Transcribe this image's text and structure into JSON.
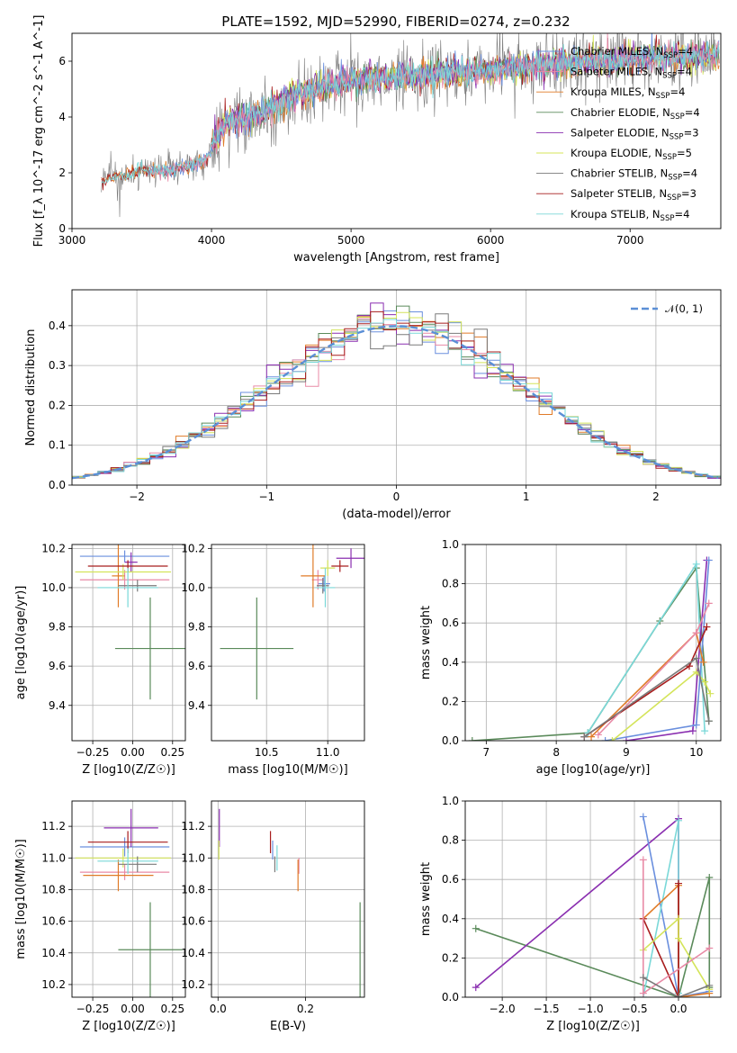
{
  "title": "PLATE=1592, MJD=52990, FIBERID=0274, z=0.232",
  "colors": {
    "Chabrier MILES": "#6a8fde",
    "Salpeter MILES": "#e88aa6",
    "Kroupa MILES": "#e07b28",
    "Chabrier ELODIE": "#5a8a5a",
    "Salpeter ELODIE": "#8a2fb0",
    "Kroupa ELODIE": "#d4e45a",
    "Chabrier STELIB": "#7a7a7a",
    "Salpeter STELIB": "#a81d1d",
    "Kroupa STELIB": "#7ad8d8",
    "normal": "#5b8fd6"
  },
  "chart_data": [
    {
      "type": "line",
      "xlabel": "wavelength [Angstrom, rest frame]",
      "ylabel": "Flux [f_λ 10^-17 erg cm^-2 s^-1 A^-1]",
      "xlim": [
        3000,
        7650
      ],
      "ylim": [
        0,
        7
      ],
      "xticks": [
        "3000",
        "4000",
        "5000",
        "6000",
        "7000"
      ],
      "yticks": [
        "0",
        "2",
        "4",
        "6"
      ],
      "legend_position": "top-right",
      "series": [
        {
          "name": "Chabrier MILES, N_SSP=4",
          "key": "Chabrier MILES"
        },
        {
          "name": "Salpeter MILES, N_SSP=4",
          "key": "Salpeter MILES"
        },
        {
          "name": "Kroupa MILES, N_SSP=4",
          "key": "Kroupa MILES"
        },
        {
          "name": "Chabrier ELODIE, N_SSP=4",
          "key": "Chabrier ELODIE"
        },
        {
          "name": "Salpeter ELODIE, N_SSP=3",
          "key": "Salpeter ELODIE"
        },
        {
          "name": "Kroupa ELODIE, N_SSP=5",
          "key": "Kroupa ELODIE"
        },
        {
          "name": "Chabrier STELIB, N_SSP=4",
          "key": "Chabrier STELIB"
        },
        {
          "name": "Salpeter STELIB, N_SSP=3",
          "key": "Salpeter STELIB"
        },
        {
          "name": "Kroupa STELIB, N_SSP=4",
          "key": "Kroupa STELIB"
        }
      ],
      "spectrum_profile": {
        "wavelength": [
          3200,
          3500,
          3700,
          3950,
          4100,
          4300,
          4600,
          5000,
          5500,
          6000,
          6500,
          7000,
          7400
        ],
        "flux": [
          1.7,
          2.1,
          2.05,
          2.4,
          3.8,
          4.0,
          4.8,
          5.3,
          5.5,
          5.7,
          5.9,
          6.1,
          6.2
        ]
      }
    },
    {
      "type": "step",
      "xlabel": "(data-model)/error",
      "ylabel": "Normed distribution",
      "xlim": [
        -2.5,
        2.5
      ],
      "ylim": [
        0,
        0.49
      ],
      "xticks": [
        "−2",
        "−1",
        "0",
        "1",
        "2"
      ],
      "yticks": [
        "0.0",
        "0.1",
        "0.2",
        "0.3",
        "0.4"
      ],
      "legend_position": "top-right",
      "legend": "𝒩(0, 1)",
      "normal": {
        "mean": 0,
        "sigma": 1
      }
    },
    {
      "type": "errorbar",
      "xlabel": "Z [log10(Z/Z☉)]",
      "ylabel": "age  [log10(age/yr)]",
      "xlim": [
        -0.38,
        0.33
      ],
      "ylim": [
        9.22,
        10.22
      ],
      "xticks": [
        "−0.25",
        "0.00",
        "0.25"
      ],
      "yticks": [
        "9.4",
        "9.6",
        "9.8",
        "10.0",
        "10.2"
      ],
      "points": [
        {
          "key": "Chabrier MILES",
          "x": -0.05,
          "y": 10.16,
          "xerr": 0.28,
          "yerr": 0.03
        },
        {
          "key": "Salpeter MILES",
          "x": -0.05,
          "y": 10.04,
          "xerr": 0.28,
          "yerr": 0.05
        },
        {
          "key": "Kroupa MILES",
          "x": -0.09,
          "y": 10.06,
          "xerr": 0.04,
          "yerr": 0.16
        },
        {
          "key": "Chabrier ELODIE",
          "x": 0.11,
          "y": 9.69,
          "xerr": 0.22,
          "yerr": 0.26
        },
        {
          "key": "Salpeter ELODIE",
          "x": -0.01,
          "y": 10.13,
          "xerr": 0.04,
          "yerr": 0.05
        },
        {
          "key": "Kroupa ELODIE",
          "x": -0.06,
          "y": 10.08,
          "xerr": 0.3,
          "yerr": 0.04
        },
        {
          "key": "Chabrier STELIB",
          "x": 0.03,
          "y": 10.01,
          "xerr": 0.12,
          "yerr": 0.03
        },
        {
          "key": "Salpeter STELIB",
          "x": -0.03,
          "y": 10.11,
          "xerr": 0.25,
          "yerr": 0.03
        },
        {
          "key": "Kroupa STELIB",
          "x": -0.03,
          "y": 10.0,
          "xerr": 0.19,
          "yerr": 0.1
        }
      ]
    },
    {
      "type": "errorbar",
      "xlabel": "mass [log10(M/M☉)]",
      "ylabel": "",
      "xlim": [
        10.05,
        11.3
      ],
      "ylim": [
        9.22,
        10.22
      ],
      "xticks": [
        "10.5",
        "11.0"
      ],
      "yticks": [
        "9.4",
        "9.6",
        "9.8",
        "10.0",
        "10.2"
      ],
      "points": [
        {
          "key": "Chabrier MILES",
          "x": 10.97,
          "y": 10.02,
          "xerr": 0.05,
          "yerr": 0.04
        },
        {
          "key": "Salpeter MILES",
          "x": 10.92,
          "y": 10.04,
          "xerr": 0.05,
          "yerr": 0.05
        },
        {
          "key": "Kroupa MILES",
          "x": 10.88,
          "y": 10.06,
          "xerr": 0.1,
          "yerr": 0.16
        },
        {
          "key": "Chabrier ELODIE",
          "x": 10.42,
          "y": 9.69,
          "xerr": 0.3,
          "yerr": 0.26
        },
        {
          "key": "Salpeter ELODIE",
          "x": 11.19,
          "y": 10.15,
          "xerr": 0.12,
          "yerr": 0.05
        },
        {
          "key": "Kroupa ELODIE",
          "x": 11.0,
          "y": 10.1,
          "xerr": 0.06,
          "yerr": 0.04
        },
        {
          "key": "Chabrier STELIB",
          "x": 10.96,
          "y": 10.01,
          "xerr": 0.05,
          "yerr": 0.04
        },
        {
          "key": "Salpeter STELIB",
          "x": 11.1,
          "y": 10.11,
          "xerr": 0.07,
          "yerr": 0.03
        },
        {
          "key": "Kroupa STELIB",
          "x": 10.98,
          "y": 10.0,
          "xerr": 0.08,
          "yerr": 0.1
        }
      ]
    },
    {
      "type": "line",
      "xlabel": "age  [log10(age/yr)]",
      "ylabel": "mass weight",
      "xlim": [
        6.7,
        10.35
      ],
      "ylim": [
        0,
        1.0
      ],
      "xticks": [
        "7",
        "8",
        "9",
        "10"
      ],
      "yticks": [
        "0.0",
        "0.2",
        "0.4",
        "0.6",
        "0.8",
        "1.0"
      ],
      "series": [
        {
          "key": "Chabrier ELODIE",
          "points": [
            [
              6.8,
              0.0
            ],
            [
              8.45,
              0.04
            ],
            [
              9.48,
              0.61
            ],
            [
              10.0,
              0.88
            ],
            [
              10.18,
              0.1
            ]
          ]
        },
        {
          "key": "Kroupa STELIB",
          "points": [
            [
              8.45,
              0.04
            ],
            [
              10.0,
              0.9
            ],
            [
              10.12,
              0.05
            ]
          ]
        },
        {
          "key": "Salpeter ELODIE",
          "points": [
            [
              9.0,
              0.0
            ],
            [
              9.95,
              0.05
            ],
            [
              10.15,
              0.92
            ]
          ]
        },
        {
          "key": "Chabrier MILES",
          "points": [
            [
              8.7,
              0.0
            ],
            [
              10.0,
              0.08
            ],
            [
              10.18,
              0.92
            ]
          ]
        },
        {
          "key": "Kroupa MILES",
          "points": [
            [
              8.5,
              0.02
            ],
            [
              10.0,
              0.55
            ],
            [
              10.1,
              0.4
            ]
          ]
        },
        {
          "key": "Salpeter STELIB",
          "points": [
            [
              8.4,
              0.02
            ],
            [
              9.9,
              0.38
            ],
            [
              10.15,
              0.58
            ]
          ]
        },
        {
          "key": "Kroupa ELODIE",
          "points": [
            [
              8.8,
              0.0
            ],
            [
              10.0,
              0.35
            ],
            [
              10.12,
              0.3
            ],
            [
              10.2,
              0.24
            ]
          ]
        },
        {
          "key": "Salpeter MILES",
          "points": [
            [
              8.6,
              0.03
            ],
            [
              10.0,
              0.55
            ],
            [
              10.18,
              0.7
            ]
          ]
        },
        {
          "key": "Chabrier STELIB",
          "points": [
            [
              8.4,
              0.02
            ],
            [
              10.0,
              0.42
            ],
            [
              10.18,
              0.1
            ]
          ]
        }
      ]
    },
    {
      "type": "errorbar",
      "xlabel": "Z [log10(Z/Z☉)]",
      "ylabel": "mass [log10(M/M☉)]",
      "xlim": [
        -0.38,
        0.33
      ],
      "ylim": [
        10.12,
        11.36
      ],
      "xticks": [
        "−0.25",
        "0.00",
        "0.25"
      ],
      "yticks": [
        "10.2",
        "10.4",
        "10.6",
        "10.8",
        "11.0",
        "11.2"
      ],
      "points": [
        {
          "key": "Chabrier MILES",
          "x": -0.05,
          "y": 11.07,
          "xerr": 0.28,
          "yerr": 0.06
        },
        {
          "key": "Salpeter MILES",
          "x": -0.05,
          "y": 10.91,
          "xerr": 0.28,
          "yerr": 0.05
        },
        {
          "key": "Kroupa MILES",
          "x": -0.09,
          "y": 10.89,
          "xerr": 0.22,
          "yerr": 0.1
        },
        {
          "key": "Chabrier ELODIE",
          "x": 0.11,
          "y": 10.42,
          "xerr": 0.2,
          "yerr": 0.3
        },
        {
          "key": "Salpeter ELODIE",
          "x": -0.01,
          "y": 11.19,
          "xerr": 0.17,
          "yerr": 0.12
        },
        {
          "key": "Kroupa ELODIE",
          "x": -0.06,
          "y": 11.0,
          "xerr": 0.3,
          "yerr": 0.06
        },
        {
          "key": "Chabrier STELIB",
          "x": 0.03,
          "y": 10.96,
          "xerr": 0.12,
          "yerr": 0.05
        },
        {
          "key": "Salpeter STELIB",
          "x": -0.03,
          "y": 11.1,
          "xerr": 0.25,
          "yerr": 0.07
        },
        {
          "key": "Kroupa STELIB",
          "x": -0.03,
          "y": 10.98,
          "xerr": 0.19,
          "yerr": 0.08
        }
      ]
    },
    {
      "type": "errorbar",
      "xlabel": "E(B-V)",
      "ylabel": "",
      "xlim": [
        -0.015,
        0.335
      ],
      "ylim": [
        10.12,
        11.36
      ],
      "xticks": [
        "0.0",
        "0.2"
      ],
      "yticks": [
        "10.2",
        "10.4",
        "10.6",
        "10.8",
        "11.0",
        "11.2"
      ],
      "points": [
        {
          "key": "Chabrier MILES",
          "x": 0.125,
          "y": 11.05,
          "xerr": 0.0,
          "yerr": 0.06
        },
        {
          "key": "Salpeter MILES",
          "x": 0.185,
          "y": 10.95,
          "xerr": 0.0,
          "yerr": 0.05
        },
        {
          "key": "Kroupa MILES",
          "x": 0.183,
          "y": 10.89,
          "xerr": 0.0,
          "yerr": 0.1
        },
        {
          "key": "Chabrier ELODIE",
          "x": 0.325,
          "y": 10.42,
          "xerr": 0.0,
          "yerr": 0.3
        },
        {
          "key": "Salpeter ELODIE",
          "x": 0.003,
          "y": 11.19,
          "xerr": 0.0,
          "yerr": 0.12
        },
        {
          "key": "Kroupa ELODIE",
          "x": 0.002,
          "y": 11.05,
          "xerr": 0.0,
          "yerr": 0.06
        },
        {
          "key": "Chabrier STELIB",
          "x": 0.13,
          "y": 10.96,
          "xerr": 0.0,
          "yerr": 0.05
        },
        {
          "key": "Salpeter STELIB",
          "x": 0.12,
          "y": 11.1,
          "xerr": 0.0,
          "yerr": 0.07
        },
        {
          "key": "Kroupa STELIB",
          "x": 0.135,
          "y": 11.0,
          "xerr": 0.0,
          "yerr": 0.08
        }
      ]
    },
    {
      "type": "line",
      "xlabel": "Z [log10(Z/Z☉)]",
      "ylabel": "mass weight",
      "xlim": [
        -2.42,
        0.48
      ],
      "ylim": [
        0,
        1.0
      ],
      "xticks": [
        "−2.0",
        "−1.5",
        "−1.0",
        "−0.5",
        "0.0"
      ],
      "yticks": [
        "0.0",
        "0.2",
        "0.4",
        "0.6",
        "0.8",
        "1.0"
      ],
      "series": [
        {
          "key": "Chabrier ELODIE",
          "points": [
            [
              -2.3,
              0.35
            ],
            [
              0.0,
              0.0
            ],
            [
              0.35,
              0.61
            ],
            [
              0.35,
              0.05
            ]
          ]
        },
        {
          "key": "Salpeter ELODIE",
          "points": [
            [
              -2.3,
              0.05
            ],
            [
              0.0,
              0.91
            ],
            [
              0.0,
              0.0
            ]
          ]
        },
        {
          "key": "Chabrier MILES",
          "points": [
            [
              -0.4,
              0.92
            ],
            [
              0.0,
              0.0
            ],
            [
              0.35,
              0.03
            ]
          ]
        },
        {
          "key": "Kroupa STELIB",
          "points": [
            [
              -0.4,
              0.0
            ],
            [
              0.0,
              0.9
            ],
            [
              0.0,
              0.02
            ]
          ]
        },
        {
          "key": "Kroupa MILES",
          "points": [
            [
              -0.4,
              0.4
            ],
            [
              0.0,
              0.57
            ],
            [
              0.0,
              0.0
            ],
            [
              0.35,
              0.02
            ]
          ]
        },
        {
          "key": "Salpeter STELIB",
          "points": [
            [
              -0.4,
              0.4
            ],
            [
              0.0,
              0.0
            ],
            [
              0.0,
              0.58
            ]
          ]
        },
        {
          "key": "Kroupa ELODIE",
          "points": [
            [
              -0.4,
              0.24
            ],
            [
              0.0,
              0.4
            ],
            [
              0.0,
              0.3
            ],
            [
              0.35,
              0.04
            ]
          ]
        },
        {
          "key": "Salpeter MILES",
          "points": [
            [
              -0.4,
              0.7
            ],
            [
              -0.4,
              0.02
            ],
            [
              0.35,
              0.25
            ]
          ]
        },
        {
          "key": "Chabrier STELIB",
          "points": [
            [
              -0.4,
              0.1
            ],
            [
              0.0,
              0.0
            ],
            [
              0.35,
              0.06
            ]
          ]
        }
      ]
    }
  ]
}
